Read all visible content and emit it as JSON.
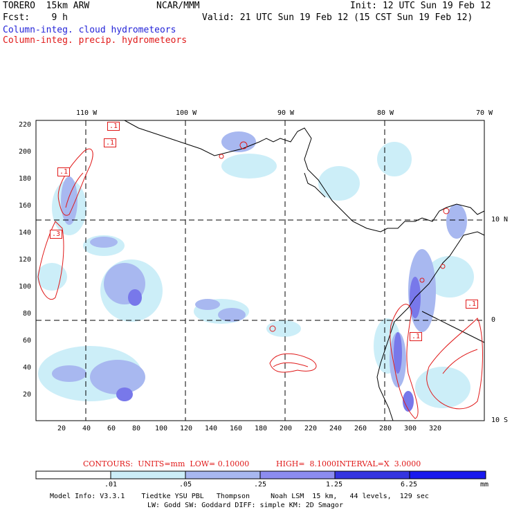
{
  "header": {
    "model": "TORERO  15km ARW",
    "org": "NCAR/MMM",
    "init": "Init: 12 UTC Sun 19 Feb 12",
    "fcst": "Fcst:    9 h",
    "valid": "Valid: 21 UTC Sun 19 Feb 12 (15 CST Sun 19 Feb 12)",
    "field_cloud": "Column-integ. cloud hydrometeors",
    "field_precip": "Column-integ. precip. hydrometeors"
  },
  "axes": {
    "lon_labels": [
      "110 W",
      "100 W",
      "90 W",
      "80 W",
      "70 W"
    ],
    "lat_labels": [
      "10 N",
      "0",
      "10 S"
    ],
    "y_ticks": [
      "220",
      "200",
      "180",
      "160",
      "140",
      "120",
      "100",
      "80",
      "60",
      "40",
      "20"
    ],
    "x_ticks": [
      "20",
      "40",
      "60",
      "80",
      "100",
      "120",
      "140",
      "160",
      "180",
      "200",
      "220",
      "240",
      "260",
      "280",
      "300",
      "320"
    ]
  },
  "contour_labels": [
    ".1",
    ".1",
    ".1",
    ".3",
    ".1",
    ".1"
  ],
  "contours_info": {
    "label": "CONTOURS:  UNITS=mm  LOW= 0.10000",
    "high": "HIGH=  8.1000",
    "interval": "INTERVAL=X  3.0000"
  },
  "colorbar": {
    "ticks": [
      ".01",
      ".05",
      ".25",
      "1.25",
      "6.25"
    ],
    "unit": "mm",
    "colors": [
      "#ffffff",
      "#cceef8",
      "#a8b8f0",
      "#8c8cf0",
      "#5a5ae8",
      "#3434e0",
      "#1a1aee"
    ]
  },
  "footer": {
    "line1": "Model Info: V3.3.1    Tiedtke YSU PBL   Thompson     Noah LSM  15 km,   44 levels,  129 sec",
    "line2": "LW: Godd SW: Goddard DIFF: simple KM: 2D Smagor"
  }
}
